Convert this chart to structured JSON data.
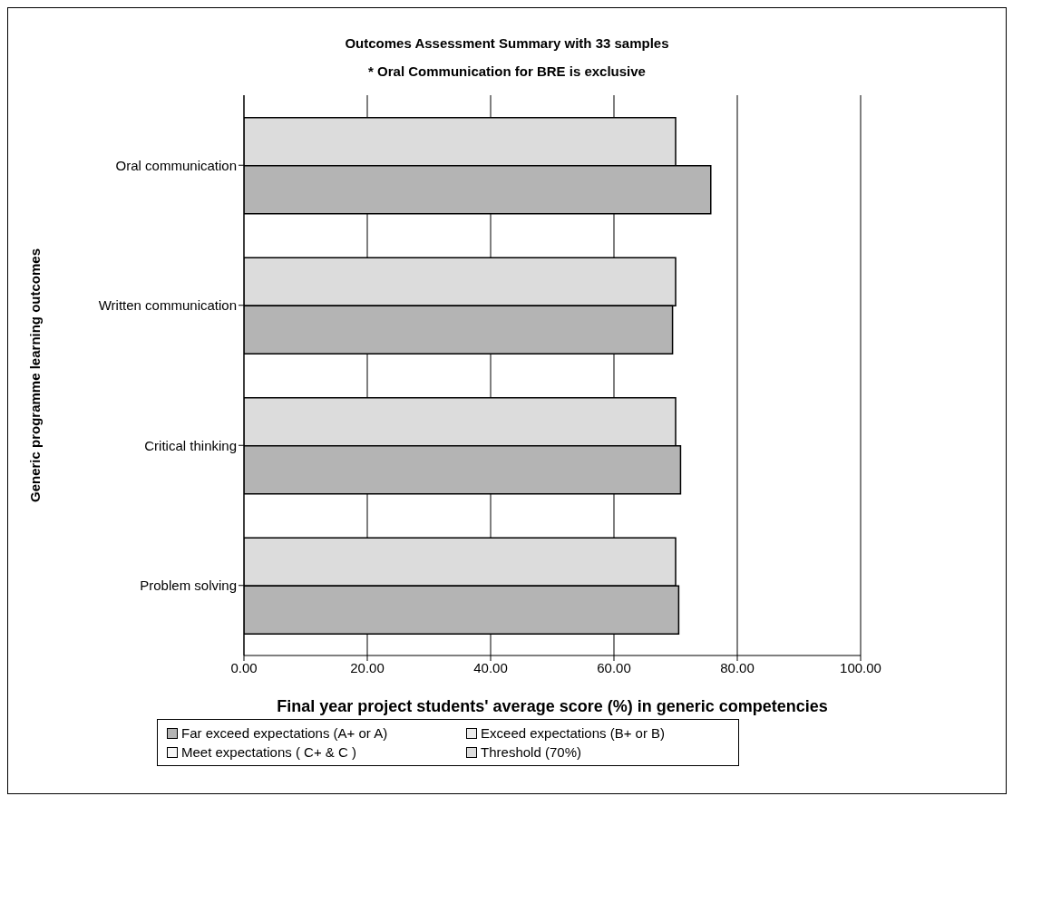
{
  "chart_data": {
    "type": "bar",
    "orientation": "horizontal",
    "title": "Outcomes Assessment Summary with 33 samples",
    "subtitle": "* Oral Communication for BRE is exclusive",
    "xlabel": "Final year project students' average score (%) in generic competencies",
    "ylabel": "Generic programme learning outcomes",
    "categories": [
      "Oral communication",
      "Written communication",
      "Critical thinking",
      "Problem solving"
    ],
    "series": [
      {
        "name": "Far exceed expectations (A+ or A)",
        "color": "#b4b4b4",
        "values": [
          75.7,
          69.5,
          70.8,
          70.5
        ]
      },
      {
        "name": "Exceed expectations (B+ or B)",
        "color": "#ececec",
        "values": [
          null,
          null,
          null,
          null
        ]
      },
      {
        "name": "Meet expectations ( C+ & C )",
        "color": "#f6f6f6",
        "values": [
          null,
          null,
          null,
          null
        ]
      },
      {
        "name": "Threshold (70%)",
        "color": "#dcdcdc",
        "values": [
          70,
          70,
          70,
          70
        ]
      }
    ],
    "xlim": [
      0,
      100
    ],
    "xticks": [
      {
        "value": 0,
        "label": "0.00"
      },
      {
        "value": 20,
        "label": "20.00"
      },
      {
        "value": 40,
        "label": "40.00"
      },
      {
        "value": 60,
        "label": "60.00"
      },
      {
        "value": 80,
        "label": "80.00"
      },
      {
        "value": 100,
        "label": "100.00"
      }
    ],
    "grid": "x",
    "legend": "bottom"
  }
}
